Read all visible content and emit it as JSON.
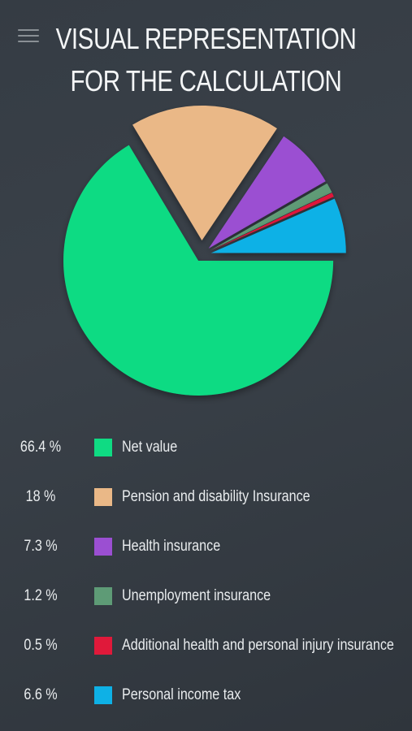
{
  "chart_data": {
    "type": "pie",
    "title": "VISUAL REPRESENTATION FOR THE CALCULATION",
    "slices": [
      {
        "label": "Net value",
        "value": 66.4,
        "value_label": "66.4 %",
        "color": "#0fdb83"
      },
      {
        "label": "Pension and disability Insurance",
        "value": 18,
        "value_label": "18 %",
        "color": "#eab887"
      },
      {
        "label": "Health insurance",
        "value": 7.3,
        "value_label": "7.3 %",
        "color": "#9b4fd2"
      },
      {
        "label": "Unemployment insurance",
        "value": 1.2,
        "value_label": "1.2 %",
        "color": "#5e9b76"
      },
      {
        "label": "Additional health and personal injury insurance",
        "value": 0.5,
        "value_label": "0.5 %",
        "color": "#e0193a"
      },
      {
        "label": "Personal income tax",
        "value": 6.6,
        "value_label": "6.6 %",
        "color": "#0eb1e6"
      }
    ],
    "exploded": [
      "Net value",
      "Pension and disability Insurance"
    ],
    "legend_position": "bottom"
  }
}
